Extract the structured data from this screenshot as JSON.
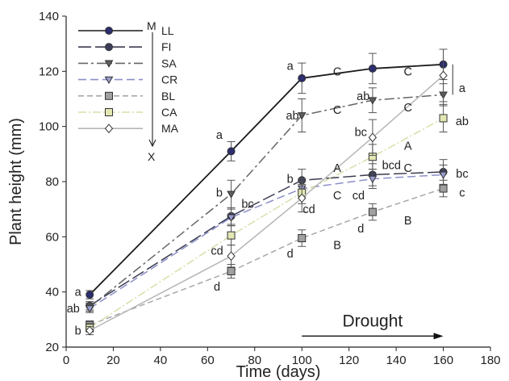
{
  "chart_data": {
    "type": "line",
    "title": "",
    "xlabel": "Time (days)",
    "ylabel": "Plant height (mm)",
    "xlim": [
      0,
      180
    ],
    "ylim": [
      20,
      140
    ],
    "xticks": [
      0,
      20,
      40,
      60,
      80,
      100,
      120,
      140,
      160,
      180
    ],
    "yticks": [
      20,
      40,
      60,
      80,
      100,
      120,
      140
    ],
    "grid": false,
    "legend_position": "top-left",
    "legend_arrow": {
      "top_label": "M",
      "bottom_label": "X"
    },
    "annotation": {
      "text": "Drought",
      "arrow_from_x": 100,
      "arrow_to_x": 160
    },
    "series": [
      {
        "name": "LL",
        "color": "#1a1a1a",
        "marker": "circle",
        "marker_fill": "#2b2d6e",
        "dash": "",
        "x": [
          10,
          70,
          100,
          130,
          160
        ],
        "y": [
          39,
          91,
          117.5,
          121,
          122.5
        ],
        "err": [
          1.5,
          3.5,
          5.5,
          5.5,
          5.5
        ]
      },
      {
        "name": "FI",
        "color": "#3a3a50",
        "marker": "circle",
        "marker_fill": "#3b3e58",
        "dash": "16,5",
        "x": [
          10,
          70,
          100,
          130,
          160
        ],
        "y": [
          35,
          67.5,
          80.5,
          82.5,
          83.5
        ],
        "err": [
          1.5,
          3,
          4,
          4,
          4.5
        ]
      },
      {
        "name": "SA",
        "color": "#666666",
        "marker": "triangle-down",
        "marker_fill": "#5e5e5e",
        "dash": "12,4,3,4",
        "x": [
          10,
          70,
          100,
          130,
          160
        ],
        "y": [
          34.5,
          75.5,
          104,
          109.5,
          111.5
        ],
        "err": [
          1.5,
          5,
          6,
          4.5,
          4
        ]
      },
      {
        "name": "CR",
        "color": "#8b8fc8",
        "marker": "triangle-down",
        "marker_fill": "#9a9dd0",
        "dash": "10,5",
        "x": [
          10,
          70,
          100,
          130,
          160
        ],
        "y": [
          34,
          67,
          77.5,
          81,
          82.5
        ],
        "err": [
          1.5,
          3,
          3.5,
          3.5,
          3.5
        ]
      },
      {
        "name": "BL",
        "color": "#a8a8a8",
        "marker": "square",
        "marker_fill": "#a0a0a0",
        "dash": "7,4",
        "x": [
          10,
          70,
          100,
          130,
          160
        ],
        "y": [
          28,
          47.5,
          59.5,
          69,
          77.5
        ],
        "err": [
          1.5,
          2.5,
          3,
          3,
          3
        ]
      },
      {
        "name": "CA",
        "color": "#d7dfaa",
        "marker": "square",
        "marker_fill": "#e3e7b3",
        "dash": "10,3,2,3",
        "x": [
          10,
          70,
          100,
          130,
          160
        ],
        "y": [
          27,
          60.5,
          76,
          89,
          103
        ],
        "err": [
          1.5,
          3.5,
          4,
          4.5,
          5
        ]
      },
      {
        "name": "MA",
        "color": "#b5b5b5",
        "marker": "diamond",
        "marker_fill": "#ffffff",
        "dash": "",
        "x": [
          10,
          70,
          100,
          130,
          160
        ],
        "y": [
          26,
          53,
          74,
          96,
          118.5
        ],
        "err": [
          1.5,
          4,
          5,
          6.5,
          9.5
        ]
      }
    ],
    "letters": [
      {
        "text": "a",
        "x": 5,
        "y": 40
      },
      {
        "text": "ab",
        "x": 3,
        "y": 34
      },
      {
        "text": "b",
        "x": 5,
        "y": 26
      },
      {
        "text": "a",
        "x": 65,
        "y": 97
      },
      {
        "text": "b",
        "x": 65,
        "y": 76
      },
      {
        "text": "bc",
        "x": 77,
        "y": 72
      },
      {
        "text": "cd",
        "x": 64,
        "y": 55
      },
      {
        "text": "d",
        "x": 64,
        "y": 42
      },
      {
        "text": "a",
        "x": 95,
        "y": 122
      },
      {
        "text": "ab",
        "x": 96,
        "y": 104
      },
      {
        "text": "b",
        "x": 95,
        "y": 81
      },
      {
        "text": "cd",
        "x": 103,
        "y": 70
      },
      {
        "text": "d",
        "x": 95,
        "y": 54
      },
      {
        "text": "C",
        "x": 115,
        "y": 120
      },
      {
        "text": "C",
        "x": 115,
        "y": 106
      },
      {
        "text": "A",
        "x": 115,
        "y": 85
      },
      {
        "text": "C",
        "x": 115,
        "y": 75
      },
      {
        "text": "B",
        "x": 115,
        "y": 57
      },
      {
        "text": "ab",
        "x": 126,
        "y": 111
      },
      {
        "text": "bc",
        "x": 125,
        "y": 98
      },
      {
        "text": "bcd",
        "x": 138,
        "y": 86
      },
      {
        "text": "cd",
        "x": 124,
        "y": 75
      },
      {
        "text": "d",
        "x": 125,
        "y": 63
      },
      {
        "text": "C",
        "x": 145,
        "y": 120
      },
      {
        "text": "C",
        "x": 145,
        "y": 107
      },
      {
        "text": "A",
        "x": 145,
        "y": 93
      },
      {
        "text": "C",
        "x": 145,
        "y": 85
      },
      {
        "text": "B",
        "x": 145,
        "y": 66
      },
      {
        "text": "a",
        "x": 168,
        "y": 114
      },
      {
        "text": "ab",
        "x": 168,
        "y": 102
      },
      {
        "text": "bc",
        "x": 168,
        "y": 83
      },
      {
        "text": "c",
        "x": 168,
        "y": 76
      }
    ],
    "bracket": {
      "x": 164,
      "y_top": 122.5,
      "y_bottom": 111.5
    }
  }
}
